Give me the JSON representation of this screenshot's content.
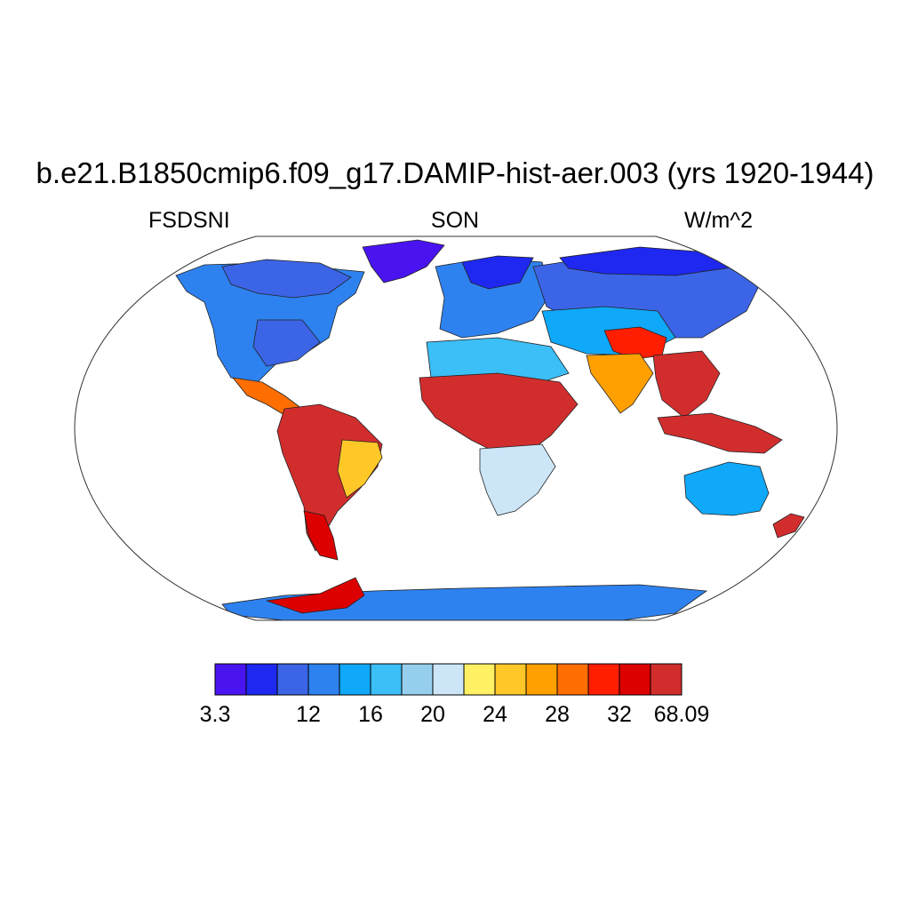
{
  "title": "b.e21.B1850cmip6.f09_g17.DAMIP-hist-aer.003 (yrs 1920-1944)",
  "subtitle_left": "FSDSNI",
  "subtitle_center": "SON",
  "subtitle_right": "W/m^2",
  "colorbar": {
    "colors": [
      "#4a14f0",
      "#1e28f0",
      "#3c64e6",
      "#2e82f0",
      "#10a8f8",
      "#3cbef6",
      "#96cfee",
      "#cce6f8",
      "#fff064",
      "#ffc828",
      "#ffa000",
      "#ff6e00",
      "#ff1e00",
      "#dc0000",
      "#d22d2d"
    ],
    "labels": [
      {
        "text": "3.3",
        "bin": 0
      },
      {
        "text": "12",
        "bin": 3
      },
      {
        "text": "16",
        "bin": 5
      },
      {
        "text": "20",
        "bin": 7
      },
      {
        "text": "24",
        "bin": 9
      },
      {
        "text": "28",
        "bin": 11
      },
      {
        "text": "32",
        "bin": 13
      },
      {
        "text": "68.09",
        "bin": 15
      }
    ]
  },
  "regions": [
    {
      "name": "north-america",
      "level": 3
    },
    {
      "name": "canada-north",
      "level": 2
    },
    {
      "name": "greenland",
      "level": 0
    },
    {
      "name": "usa-east",
      "level": 2
    },
    {
      "name": "central-america",
      "level": 11
    },
    {
      "name": "south-america",
      "level": 14
    },
    {
      "name": "brazil-east",
      "level": 9
    },
    {
      "name": "patagonia",
      "level": 13
    },
    {
      "name": "europe",
      "level": 3
    },
    {
      "name": "scandinavia",
      "level": 1
    },
    {
      "name": "north-africa",
      "level": 5
    },
    {
      "name": "sahel-africa",
      "level": 14
    },
    {
      "name": "south-africa",
      "level": 7
    },
    {
      "name": "russia",
      "level": 2
    },
    {
      "name": "siberia-north",
      "level": 1
    },
    {
      "name": "central-asia",
      "level": 4
    },
    {
      "name": "tibet",
      "level": 12
    },
    {
      "name": "india",
      "level": 10
    },
    {
      "name": "southeast-asia",
      "level": 14
    },
    {
      "name": "indonesia",
      "level": 14
    },
    {
      "name": "australia",
      "level": 4
    },
    {
      "name": "new-zealand",
      "level": 14
    },
    {
      "name": "antarctica",
      "level": 3
    },
    {
      "name": "antarctic-peninsula",
      "level": 13
    }
  ]
}
